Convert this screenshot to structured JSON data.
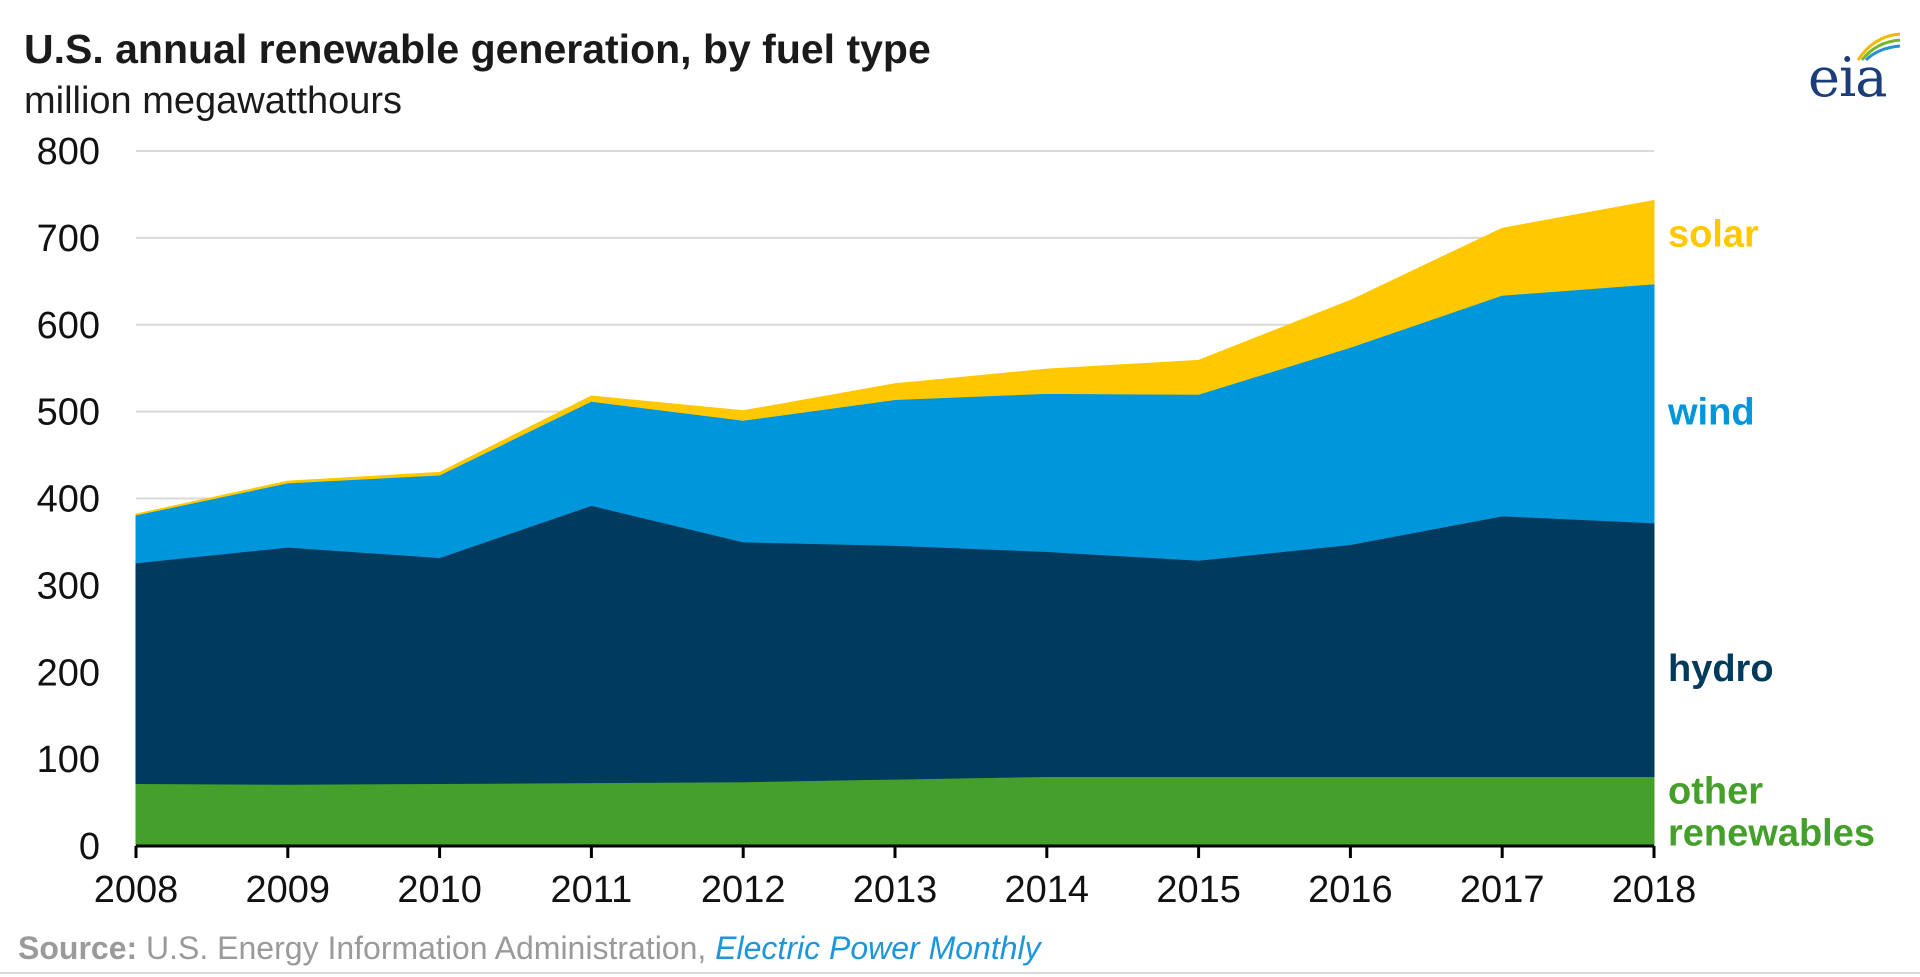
{
  "header": {
    "title": "U.S. annual renewable generation, by fuel type",
    "subtitle": "million megawatthours"
  },
  "logo": {
    "text": "eia"
  },
  "source": {
    "label": "Source:",
    "agency": "U.S. Energy Information Administration,",
    "publication": "Electric Power Monthly"
  },
  "colors": {
    "other": "#44a02b",
    "hydro": "#003a5c",
    "wind": "#0096dc",
    "solar": "#ffc800",
    "grid": "#d9d9d9",
    "axis": "#000000"
  },
  "chart_data": {
    "type": "area",
    "stacked": true,
    "title": "U.S. annual renewable generation, by fuel type",
    "ylabel": "million megawatthours",
    "xlabel": "",
    "x": [
      2008,
      2009,
      2010,
      2011,
      2012,
      2013,
      2014,
      2015,
      2016,
      2017,
      2018
    ],
    "ylim": [
      0,
      800
    ],
    "yticks": [
      0,
      100,
      200,
      300,
      400,
      500,
      600,
      700,
      800
    ],
    "grid": true,
    "series": [
      {
        "name": "other renewables",
        "label": [
          "other",
          "renewables"
        ],
        "color": "#44a02b",
        "label_value": 40,
        "values": [
          72,
          71,
          72,
          73,
          74,
          77,
          80,
          80,
          80,
          80,
          80
        ]
      },
      {
        "name": "hydro",
        "label": [
          "hydro"
        ],
        "color": "#003a5c",
        "label_value": 205,
        "values": [
          254,
          273,
          260,
          319,
          276,
          269,
          259,
          249,
          267,
          300,
          292
        ]
      },
      {
        "name": "wind",
        "label": [
          "wind"
        ],
        "color": "#0096dc",
        "label_value": 500,
        "values": [
          55,
          74,
          95,
          120,
          140,
          168,
          182,
          191,
          227,
          254,
          275
        ]
      },
      {
        "name": "solar",
        "label": [
          "solar"
        ],
        "color": "#ffc800",
        "label_value": 705,
        "values": [
          1,
          2,
          3,
          6,
          11,
          18,
          28,
          39,
          54,
          77,
          96
        ]
      }
    ]
  }
}
